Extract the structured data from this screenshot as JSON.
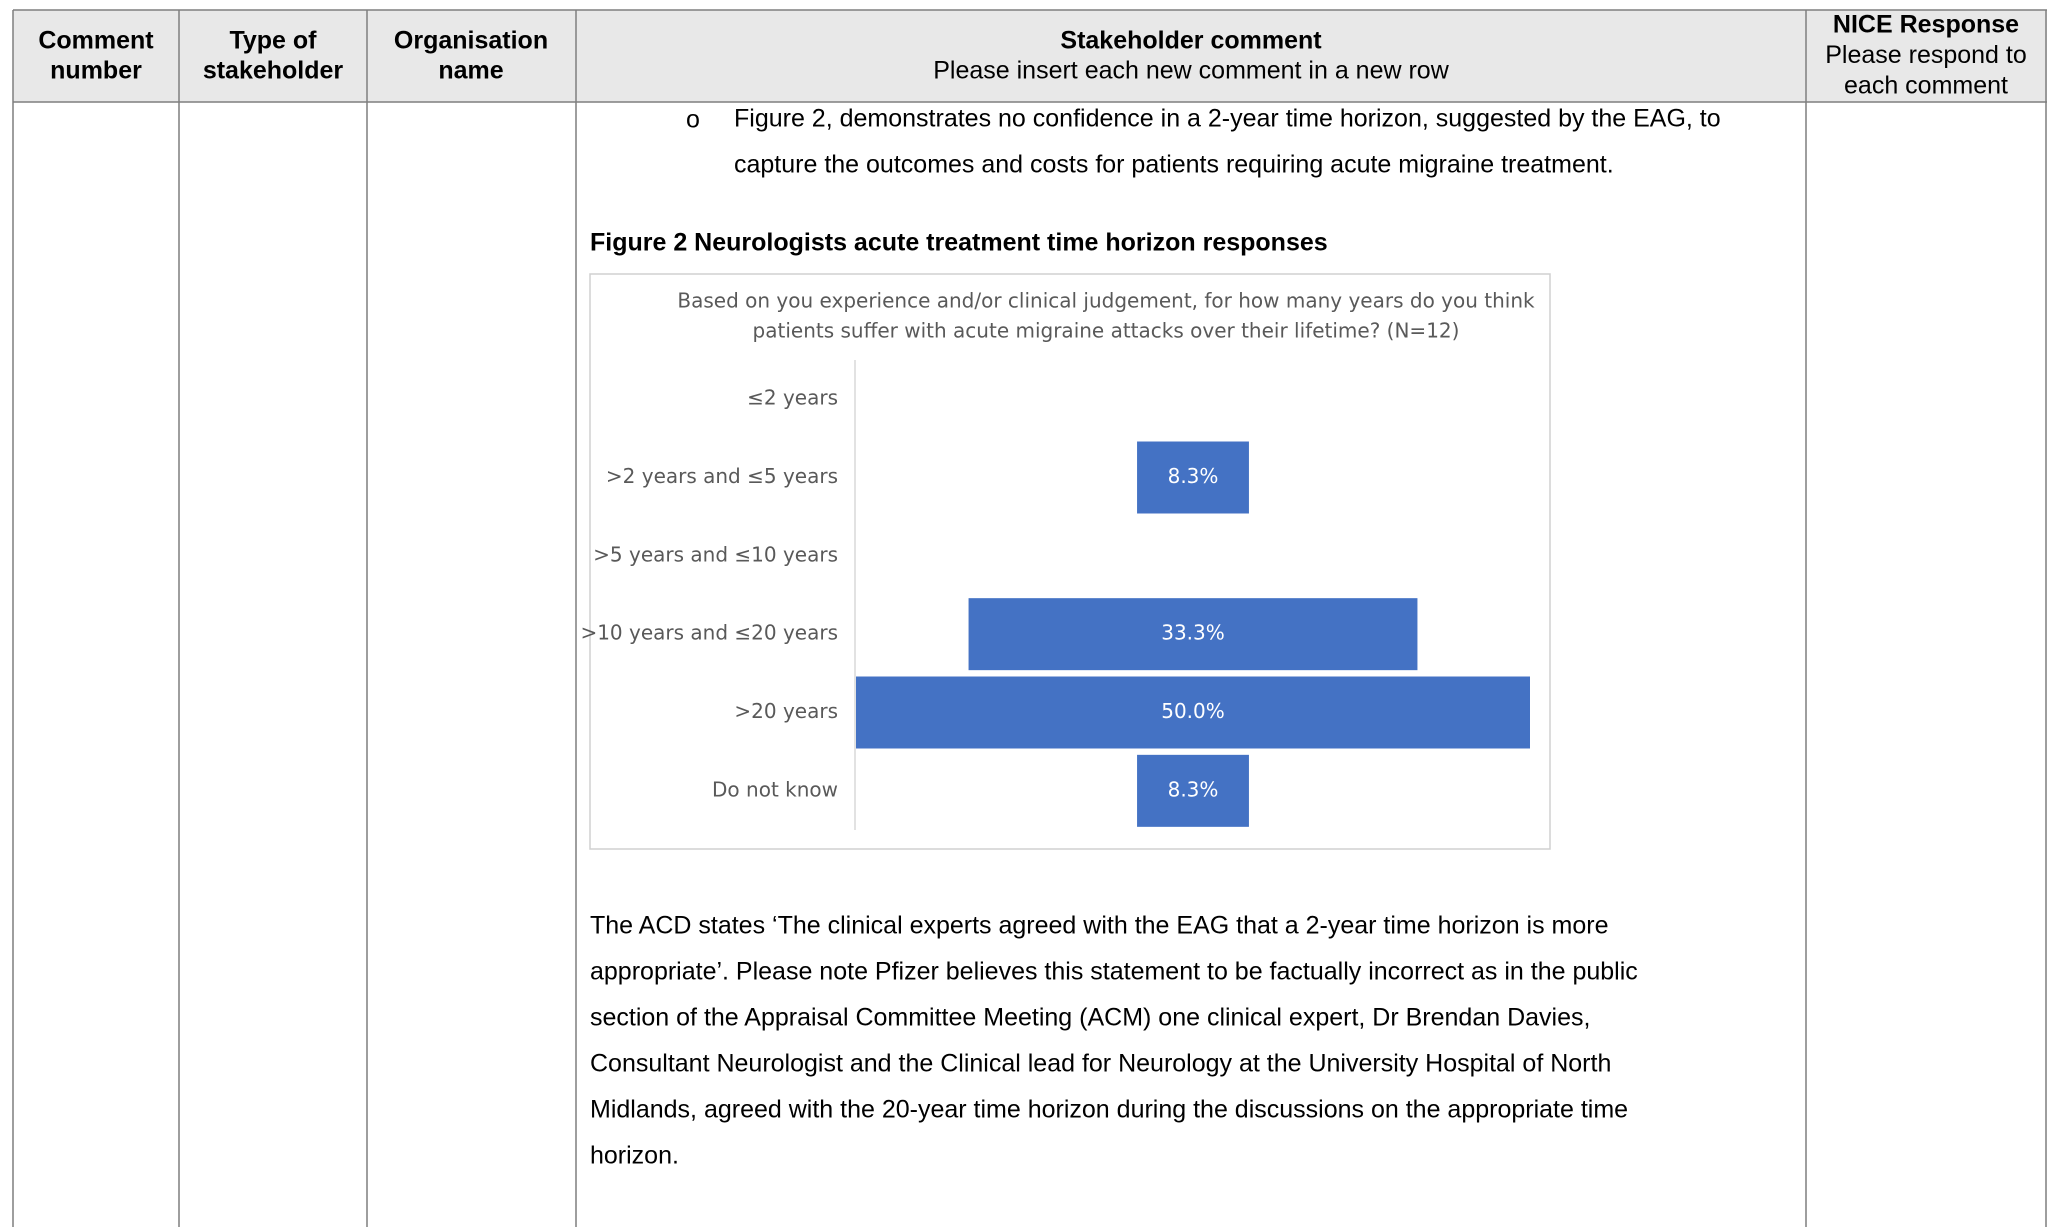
{
  "table": {
    "headers": [
      [
        "Comment",
        "number"
      ],
      [
        "Type of",
        "stakeholder"
      ],
      [
        "Organisation",
        "name"
      ],
      [
        "Stakeholder comment",
        "Please insert each new comment in a new row"
      ],
      [
        "NICE Response",
        "Please respond to",
        "each comment"
      ]
    ]
  },
  "bullet": {
    "marker": "o",
    "lines": [
      "Figure 2, demonstrates no confidence in a 2-year time horizon, suggested by the EAG, to",
      "capture the outcomes and costs for patients requiring acute migraine treatment."
    ]
  },
  "figure_caption": "Figure 2 Neurologists acute treatment time horizon responses",
  "chart_data": {
    "type": "bar",
    "orientation": "horizontal",
    "title": [
      "Based on you experience and/or clinical judgement, for how many years do you think",
      "patients suffer with acute migraine attacks over their lifetime? (N=12)"
    ],
    "categories": [
      "≤2 years",
      ">2 years and ≤5 years",
      ">5 years and ≤10 years",
      ">10 years and ≤20 years",
      ">20 years",
      "Do not know"
    ],
    "values": [
      0,
      8.3,
      0,
      33.3,
      50.0,
      8.3
    ],
    "value_labels": [
      null,
      "8.3%",
      null,
      "33.3%",
      "50.0%",
      "8.3%"
    ],
    "color": "#4472c4"
  },
  "paragraph": [
    "The ACD states ‘The clinical experts agreed with the EAG that a 2-year time horizon is more",
    "appropriate’. Please note Pfizer believes this statement to be factually incorrect as in the public",
    "section of the Appraisal Committee Meeting (ACM) one clinical expert, Dr Brendan Davies,",
    "Consultant Neurologist and the Clinical lead for Neurology at the University Hospital of North",
    "Midlands, agreed with the 20-year time horizon during the discussions on the appropriate time",
    "horizon."
  ]
}
